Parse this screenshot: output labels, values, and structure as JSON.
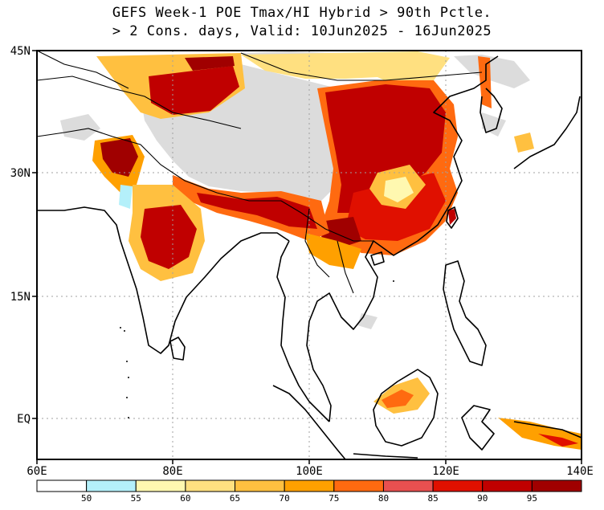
{
  "title": {
    "line1": "GEFS Week-1 POE Tmax/HI Hybrid > 90th Pctle.",
    "line2": "> 2 Cons. days, Valid: 10Jun2025 - 16Jun2025"
  },
  "axes": {
    "lat_labels": [
      "45N",
      "30N",
      "15N",
      "EQ"
    ],
    "lon_labels": [
      "60E",
      "80E",
      "100E",
      "120E",
      "140E"
    ]
  },
  "colorbar": {
    "labels": [
      "50",
      "55",
      "60",
      "65",
      "70",
      "75",
      "80",
      "85",
      "90",
      "95"
    ],
    "colors": [
      "#ffffff",
      "#b4f0fa",
      "#fff8b0",
      "#ffe080",
      "#ffc040",
      "#ffa000",
      "#ff6a10",
      "#e85050",
      "#e01000",
      "#c00000",
      "#a00000"
    ]
  },
  "colors": {
    "terrain_mask": "#dcdcdc",
    "coast": "#000000",
    "grid": "#a0a0a0"
  }
}
